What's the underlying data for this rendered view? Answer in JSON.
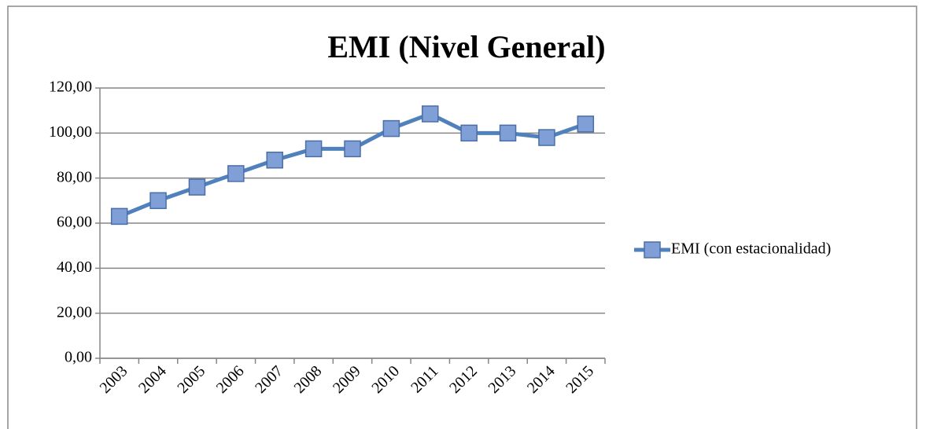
{
  "chart_data": {
    "type": "line",
    "title": "EMI (Nivel General)",
    "categories": [
      "2003",
      "2004",
      "2005",
      "2006",
      "2007",
      "2008",
      "2009",
      "2010",
      "2011",
      "2012",
      "2013",
      "2014",
      "2015"
    ],
    "series": [
      {
        "name": "EMI (con estacionalidad)",
        "color": "#4f81bd",
        "values": [
          63,
          70,
          76,
          82,
          88,
          93,
          93,
          102,
          108.5,
          100,
          100,
          98,
          104
        ]
      }
    ],
    "ylim": [
      0,
      120
    ],
    "yticks": [
      {
        "value": 0,
        "label": "0,00"
      },
      {
        "value": 20,
        "label": "20,00"
      },
      {
        "value": 40,
        "label": "40,00"
      },
      {
        "value": 60,
        "label": "60,00"
      },
      {
        "value": 80,
        "label": "80,00"
      },
      {
        "value": 100,
        "label": "100,00"
      },
      {
        "value": 120,
        "label": "120,00"
      }
    ],
    "grid": true,
    "legend": "right"
  }
}
